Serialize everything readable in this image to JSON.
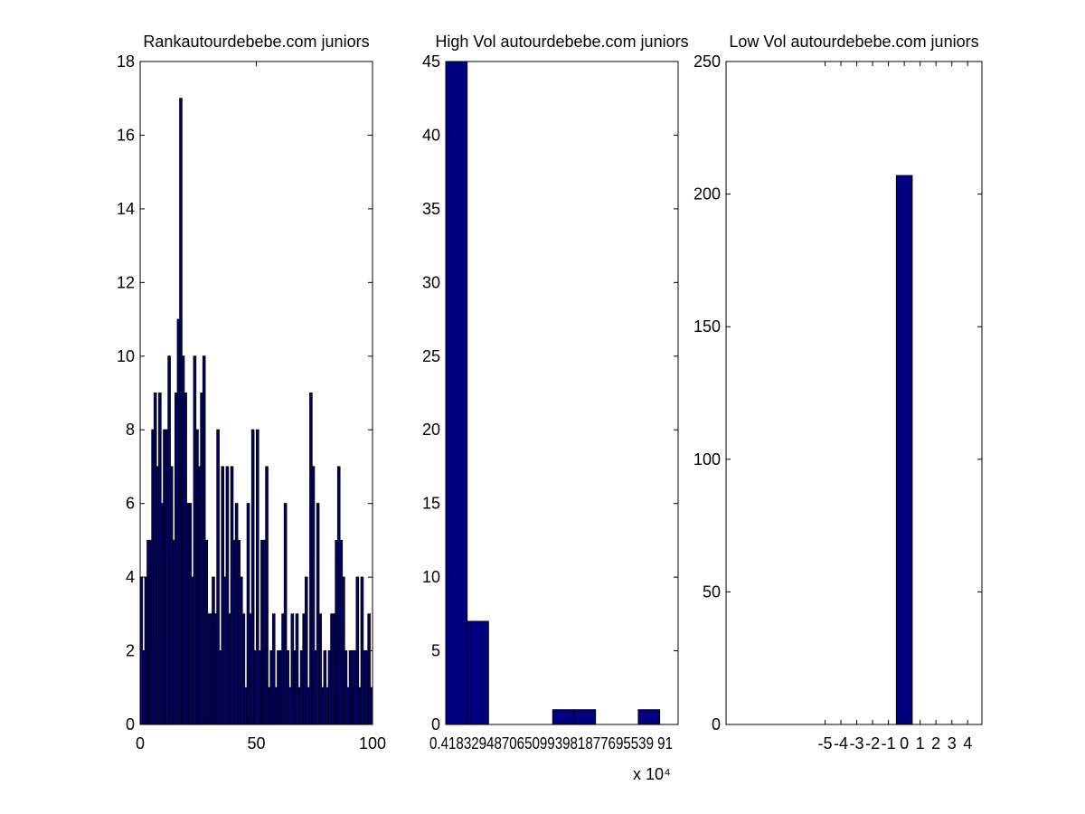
{
  "chart_data": [
    {
      "type": "histogram",
      "title": "Rankautourdebebe.com juniors",
      "color": "#000080",
      "edgecolor": "#000000",
      "bins": [
        0,
        1,
        2,
        3,
        4,
        5,
        6,
        7,
        8,
        9,
        10,
        11,
        12,
        13,
        14,
        15,
        16,
        17,
        18,
        19,
        20,
        21,
        22,
        23,
        24,
        25,
        26,
        27,
        28,
        29,
        30,
        31,
        32,
        33,
        34,
        35,
        36,
        37,
        38,
        39,
        40,
        41,
        42,
        43,
        44,
        45,
        46,
        47,
        48,
        49,
        50,
        51,
        52,
        53,
        54,
        55,
        56,
        57,
        58,
        59,
        60,
        61,
        62,
        63,
        64,
        65,
        66,
        67,
        68,
        69,
        70,
        71,
        72,
        73,
        74,
        75,
        76,
        77,
        78,
        79,
        80,
        81,
        82,
        83,
        84,
        85,
        86,
        87,
        88,
        89,
        90,
        91,
        92,
        93,
        94,
        95,
        96,
        97,
        98,
        99,
        100
      ],
      "values": [
        4,
        2,
        4,
        5,
        5,
        8,
        9,
        7,
        9,
        6,
        8,
        8,
        10,
        7,
        5,
        9,
        11,
        17,
        10,
        9,
        6,
        6,
        4,
        10,
        8,
        7,
        9,
        10,
        5,
        3,
        3,
        4,
        3,
        8,
        2,
        7,
        4,
        7,
        3,
        7,
        5,
        6,
        5,
        4,
        3,
        1,
        6,
        3,
        8,
        2,
        8,
        2,
        5,
        5,
        7,
        1,
        2,
        3,
        1,
        2,
        2,
        3,
        6,
        2,
        1,
        3,
        2,
        3,
        1,
        2,
        3,
        4,
        1,
        9,
        7,
        2,
        6,
        3,
        1,
        2,
        1,
        2,
        3,
        3,
        5,
        7,
        5,
        4,
        2,
        1,
        2,
        2,
        2,
        4,
        1,
        4,
        2,
        2,
        3,
        1
      ],
      "xlim": [
        0,
        100
      ],
      "xticks": [
        0,
        50,
        100
      ],
      "ylim": [
        0,
        18
      ],
      "yticks": [
        0,
        2,
        4,
        6,
        8,
        10,
        12,
        14,
        16,
        18
      ]
    },
    {
      "type": "histogram",
      "title": "High Vol autourdebebe.com juniors",
      "color": "#000080",
      "edgecolor": "#000000",
      "bins": [
        0.4183,
        0.7665,
        1.1147,
        1.4629,
        1.8111,
        2.1593,
        2.5075,
        2.8557,
        3.2039,
        3.5521,
        3.9003
      ],
      "values": [
        45,
        7,
        0,
        0,
        0,
        1,
        1,
        0,
        0,
        1
      ],
      "xlim": [
        0.4183,
        4.2
      ],
      "xticks": [
        {
          "value": 0.4183,
          "label": "0.4183294870650993981877695539 91"
        }
      ],
      "x_multiplier": "x 10⁴",
      "ylim": [
        0,
        45
      ],
      "yticks": [
        0,
        5,
        10,
        15,
        20,
        25,
        30,
        35,
        40,
        45
      ]
    },
    {
      "type": "histogram",
      "title": "Low Vol autourdebebe.com juniors",
      "color": "#000080",
      "edgecolor": "#000000",
      "bins": [
        -0.5,
        0.5
      ],
      "values": [
        207
      ],
      "xlim": [
        -11.25,
        4.9
      ],
      "xticks": [
        -5,
        -4,
        -3,
        -2,
        -1,
        0,
        1,
        2,
        3,
        4
      ],
      "ylim": [
        0,
        250
      ],
      "yticks": [
        0,
        50,
        100,
        150,
        200,
        250
      ]
    }
  ]
}
